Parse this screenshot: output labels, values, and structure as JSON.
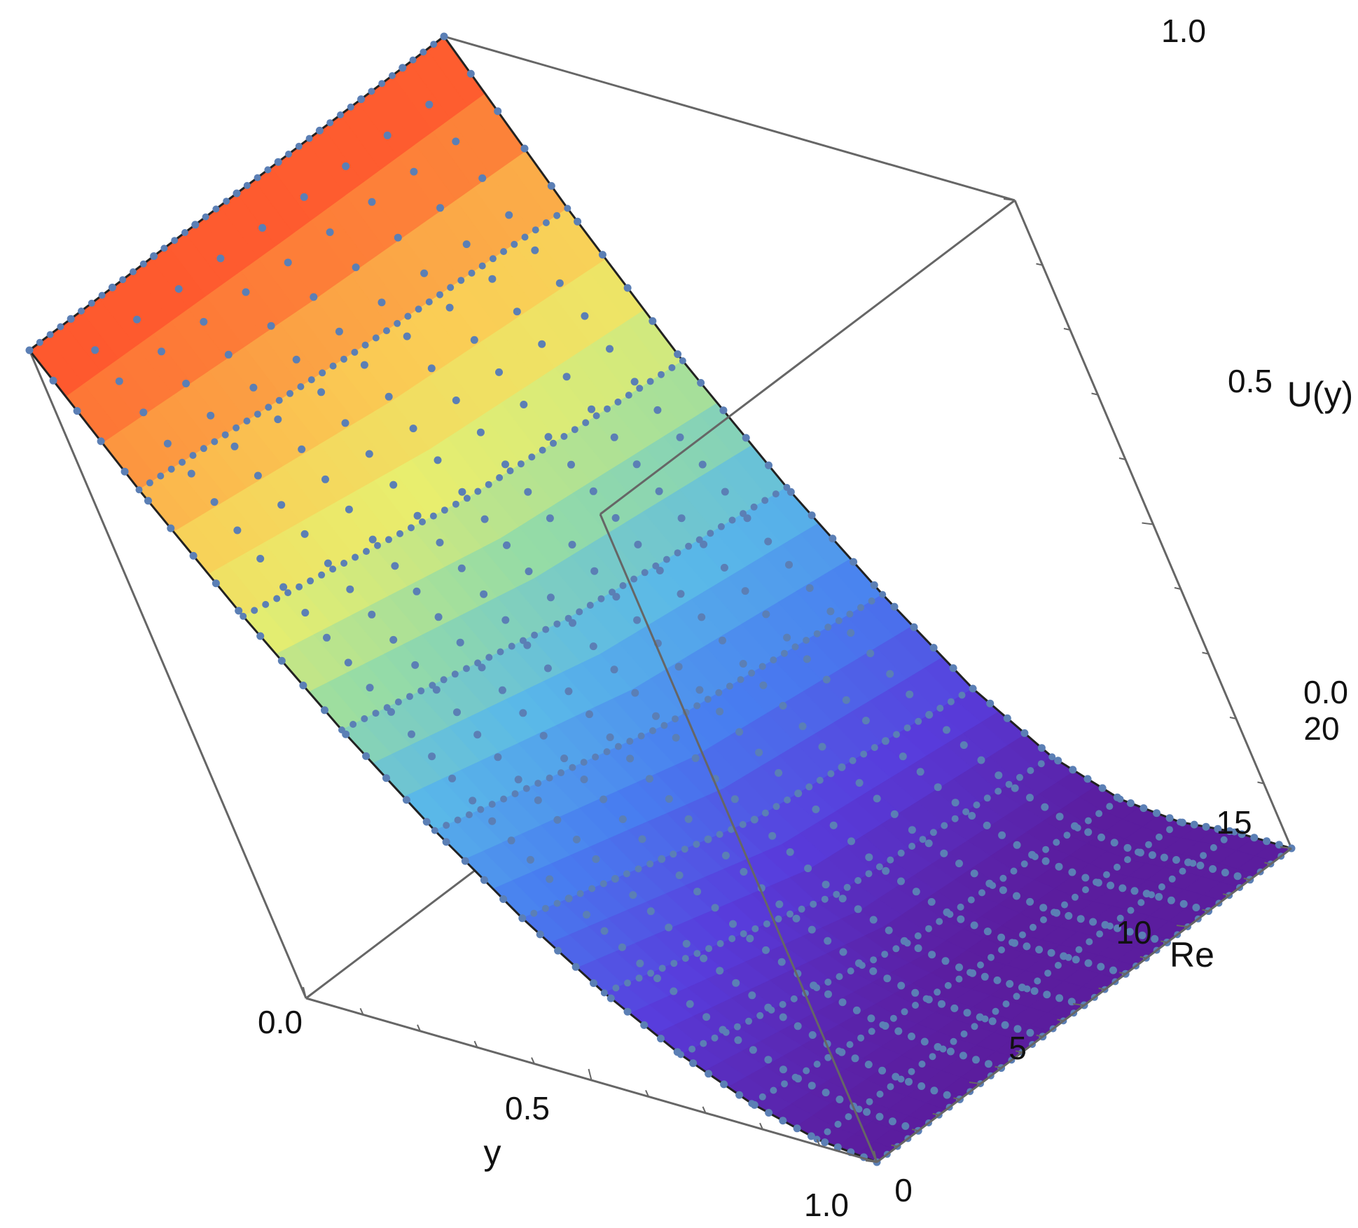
{
  "chart_data": {
    "type": "surface",
    "xlabel": "y",
    "ylabel": "Re",
    "zlabel": "U(y)",
    "x_range": [
      0.0,
      1.0
    ],
    "y_range": [
      0,
      20
    ],
    "z_range": [
      0.0,
      1.0
    ],
    "x_ticks": [
      "0.0",
      "0.5",
      "1.0"
    ],
    "y_ticks": [
      "0",
      "5",
      "10",
      "15",
      "20"
    ],
    "z_ticks": [
      "0.0",
      "0.5",
      "1.0"
    ],
    "box": true,
    "colormap": "rainbow (purple low to red high)",
    "colors": {
      "frame": "#666666",
      "points": "#5b7fb5",
      "edge": "#222222",
      "low": "#5b1d9e",
      "high": "#ff4a2a"
    },
    "grid": false,
    "legend": "none",
    "sample_points_y": [
      0,
      0.1,
      0.2,
      0.3,
      0.4,
      0.5,
      0.6,
      0.7,
      0.8,
      0.9,
      1.0
    ],
    "sample_points_Re": [
      0,
      2,
      4,
      6,
      8,
      10,
      12,
      14,
      16,
      18,
      20
    ],
    "series": [
      {
        "Re": 0,
        "U": [
          1.0,
          0.81,
          0.64,
          0.49,
          0.36,
          0.25,
          0.16,
          0.09,
          0.04,
          0.01,
          0.0
        ]
      },
      {
        "Re": 10,
        "U": [
          1.0,
          0.78,
          0.58,
          0.42,
          0.28,
          0.16,
          0.07,
          0.02,
          0.0,
          0.0,
          0.0
        ]
      },
      {
        "Re": 20,
        "U": [
          1.0,
          0.76,
          0.55,
          0.38,
          0.24,
          0.12,
          0.04,
          0.0,
          -0.01,
          0.0,
          0.0
        ]
      }
    ]
  }
}
